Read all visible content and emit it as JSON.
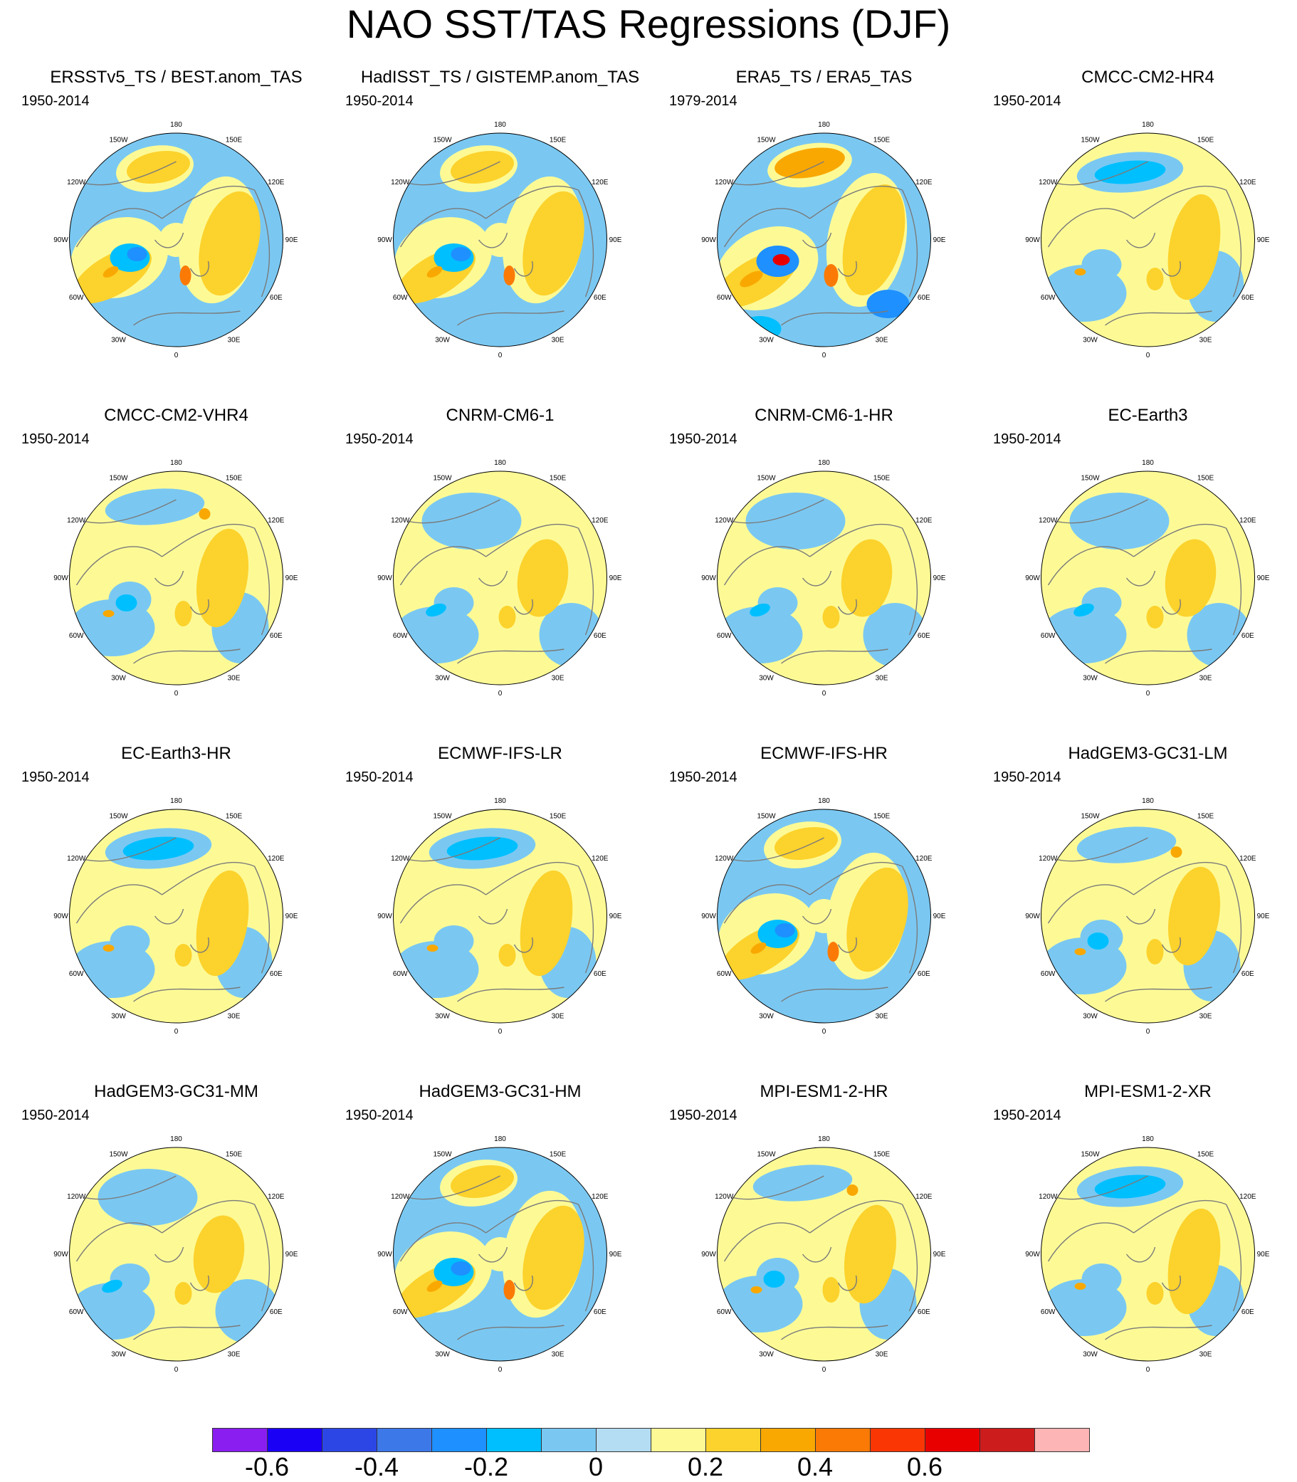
{
  "title": "NAO SST/TAS Regressions (DJF)",
  "lon_labels": [
    "180",
    "150E",
    "120E",
    "90E",
    "60E",
    "30E",
    "0",
    "30W",
    "60W",
    "90W",
    "120W",
    "150W"
  ],
  "panels": [
    {
      "title": "ERSSTv5_TS / BEST.anom_TAS",
      "period": "1950-2014",
      "pattern": "obs"
    },
    {
      "title": "HadISST_TS / GISTEMP.anom_TAS",
      "period": "1950-2014",
      "pattern": "obs"
    },
    {
      "title": "ERA5_TS / ERA5_TAS",
      "period": "1979-2014",
      "pattern": "era5"
    },
    {
      "title": "CMCC-CM2-HR4",
      "period": "1950-2014",
      "pattern": "model-negpac"
    },
    {
      "title": "CMCC-CM2-VHR4",
      "period": "1950-2014",
      "pattern": "model"
    },
    {
      "title": "CNRM-CM6-1",
      "period": "1950-2014",
      "pattern": "model-weak"
    },
    {
      "title": "CNRM-CM6-1-HR",
      "period": "1950-2014",
      "pattern": "model-weak"
    },
    {
      "title": "EC-Earth3",
      "period": "1950-2014",
      "pattern": "model-weak"
    },
    {
      "title": "EC-Earth3-HR",
      "period": "1950-2014",
      "pattern": "model-negpac"
    },
    {
      "title": "ECMWF-IFS-LR",
      "period": "1950-2014",
      "pattern": "model-negpac"
    },
    {
      "title": "ECMWF-IFS-HR",
      "period": "1950-2014",
      "pattern": "obs"
    },
    {
      "title": "HadGEM3-GC31-LM",
      "period": "1950-2014",
      "pattern": "model"
    },
    {
      "title": "HadGEM3-GC31-MM",
      "period": "1950-2014",
      "pattern": "model-weak"
    },
    {
      "title": "HadGEM3-GC31-HM",
      "period": "1950-2014",
      "pattern": "obs"
    },
    {
      "title": "MPI-ESM1-2-HR",
      "period": "1950-2014",
      "pattern": "model"
    },
    {
      "title": "MPI-ESM1-2-XR",
      "period": "1950-2014",
      "pattern": "model-negpac"
    }
  ],
  "colorbar": {
    "colors": [
      "#8a1ef0",
      "#1a00f5",
      "#2c46e6",
      "#3c78e8",
      "#1e90ff",
      "#00bfff",
      "#7ac8f2",
      "#b4dcf2",
      "#fdfa96",
      "#fcd22c",
      "#f9a802",
      "#fb7a06",
      "#fa3704",
      "#e80000",
      "#cc1c1c",
      "#fdb5b5"
    ],
    "tick_labels": [
      "-0.6",
      "-0.4",
      "-0.2",
      "0",
      "0.2",
      "0.4",
      "0.6"
    ]
  },
  "legend_colors": {
    "land_outline": "#7a7a7a",
    "background": "#ffffff"
  }
}
